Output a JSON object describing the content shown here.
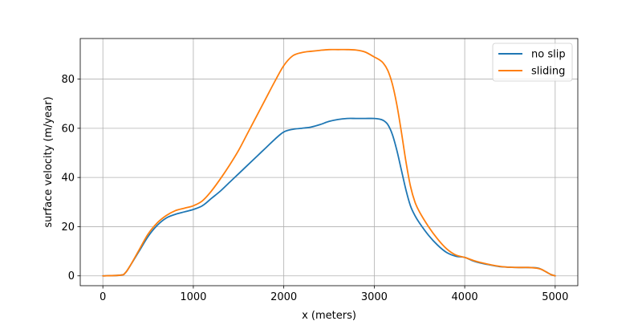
{
  "chart_data": {
    "type": "line",
    "xlabel": "x (meters)",
    "ylabel": "surface velocity (m/year)",
    "xlim": [
      -250,
      5250
    ],
    "ylim": [
      -4,
      96.5
    ],
    "xticks": [
      0,
      1000,
      2000,
      3000,
      4000,
      5000
    ],
    "yticks": [
      0,
      20,
      40,
      60,
      80
    ],
    "grid": true,
    "legend_position": "top-right",
    "series": [
      {
        "name": "no slip",
        "color": "#1f77b4",
        "x": [
          0,
          200,
          250,
          300,
          400,
          500,
          600,
          700,
          800,
          900,
          1000,
          1100,
          1200,
          1300,
          1400,
          1500,
          1600,
          1700,
          1800,
          1900,
          2000,
          2100,
          2200,
          2300,
          2400,
          2500,
          2600,
          2700,
          2800,
          2900,
          3000,
          3050,
          3100,
          3150,
          3200,
          3250,
          3300,
          3350,
          3400,
          3450,
          3500,
          3600,
          3700,
          3800,
          3900,
          4000,
          4100,
          4200,
          4300,
          4400,
          4500,
          4600,
          4700,
          4800,
          4850,
          4900,
          4950,
          5000
        ],
        "values": [
          0,
          0.3,
          1.3,
          4,
          10,
          16,
          20.5,
          23.5,
          25,
          26,
          27,
          28.5,
          31.5,
          34.5,
          38,
          41.5,
          45,
          48.5,
          52,
          55.5,
          58.5,
          59.6,
          60,
          60.5,
          61.5,
          62.8,
          63.6,
          64,
          64,
          64,
          64,
          63.8,
          63.2,
          61.5,
          57.5,
          51,
          43,
          35,
          28.5,
          24.5,
          21.5,
          16.5,
          12.5,
          9.5,
          8,
          7.5,
          6,
          5,
          4.3,
          3.7,
          3.5,
          3.4,
          3.4,
          3.2,
          2.6,
          1.6,
          0.6,
          0
        ]
      },
      {
        "name": "sliding",
        "color": "#ff7f0e",
        "x": [
          0,
          200,
          250,
          300,
          400,
          500,
          600,
          700,
          800,
          900,
          1000,
          1100,
          1200,
          1300,
          1400,
          1500,
          1600,
          1700,
          1800,
          1900,
          2000,
          2100,
          2200,
          2300,
          2400,
          2500,
          2600,
          2700,
          2800,
          2900,
          3000,
          3050,
          3100,
          3150,
          3200,
          3250,
          3300,
          3350,
          3400,
          3450,
          3500,
          3600,
          3700,
          3800,
          3900,
          4000,
          4100,
          4200,
          4300,
          4400,
          4500,
          4600,
          4700,
          4800,
          4850,
          4900,
          4950,
          5000
        ],
        "values": [
          0,
          0.3,
          1.3,
          4,
          10.5,
          17,
          21.5,
          24.5,
          26.5,
          27.5,
          28.5,
          30.5,
          34.5,
          39.5,
          45,
          51,
          58,
          65,
          72,
          79,
          85.5,
          89.5,
          90.8,
          91.3,
          91.7,
          92,
          92,
          92,
          91.8,
          91,
          89,
          88,
          86.5,
          83.5,
          78,
          69.5,
          58.5,
          46.5,
          36.5,
          30,
          26,
          20,
          15,
          11,
          8.5,
          7.5,
          6.2,
          5.2,
          4.4,
          3.8,
          3.5,
          3.4,
          3.4,
          3.1,
          2.6,
          1.6,
          0.6,
          0
        ]
      }
    ]
  }
}
